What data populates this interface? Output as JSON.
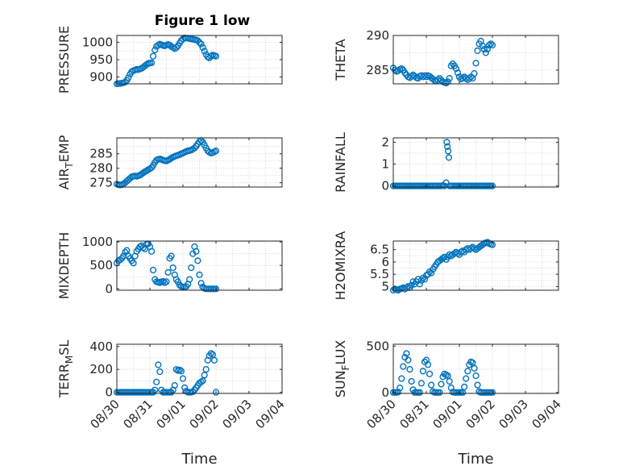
{
  "figure": {
    "title": "Figure 1 low",
    "background": "#ffffff",
    "marker_color": "#0072bd",
    "axis_color": "#262626",
    "grid_color": "#d9d9d9"
  },
  "chart_data": [
    {
      "type": "scatter",
      "title": "Figure 1 low",
      "xlabel": "",
      "ylabel": "PRESSURE",
      "ylabel_base": "",
      "ylabel_sub": "",
      "ylabel_tail": "",
      "xlim": [
        0,
        5
      ],
      "ylim": [
        880,
        1020
      ],
      "yticks": [
        900,
        950,
        1000
      ],
      "ytick_labels": [
        "900",
        "950",
        "1000"
      ],
      "xticks": [],
      "xtick_labels": [],
      "x": [
        0,
        0.05,
        0.1,
        0.15,
        0.2,
        0.25,
        0.3,
        0.35,
        0.4,
        0.45,
        0.5,
        0.55,
        0.6,
        0.65,
        0.7,
        0.75,
        0.8,
        0.85,
        0.9,
        0.95,
        1.0,
        1.05,
        1.1,
        1.15,
        1.2,
        1.25,
        1.3,
        1.35,
        1.4,
        1.45,
        1.5,
        1.55,
        1.6,
        1.65,
        1.7,
        1.75,
        1.8,
        1.85,
        1.9,
        1.95,
        2.0,
        2.05,
        2.1,
        2.15,
        2.2,
        2.25,
        2.3,
        2.35,
        2.4,
        2.45,
        2.5,
        2.55,
        2.6,
        2.65,
        2.7,
        2.75,
        2.8,
        2.85,
        2.9,
        2.95,
        3.0
      ],
      "y": [
        880,
        881,
        881,
        882,
        883,
        885,
        890,
        898,
        908,
        915,
        918,
        920,
        922,
        921,
        923,
        925,
        928,
        932,
        936,
        939,
        940,
        941,
        960,
        978,
        988,
        992,
        995,
        993,
        991,
        990,
        992,
        994,
        992,
        988,
        985,
        982,
        985,
        990,
        998,
        1005,
        1010,
        1013,
        1012,
        1012,
        1011,
        1010,
        1009,
        1008,
        1007,
        1005,
        1000,
        995,
        985,
        975,
        965,
        958,
        955,
        960,
        963,
        962,
        960
      ]
    },
    {
      "type": "scatter",
      "title": "",
      "xlabel": "",
      "ylabel": "THETA",
      "ylabel_base": "",
      "ylabel_sub": "",
      "ylabel_tail": "",
      "xlim": [
        0,
        5
      ],
      "ylim": [
        283,
        290
      ],
      "yticks": [
        285,
        290
      ],
      "ytick_labels": [
        "285",
        "290"
      ],
      "xticks": [],
      "xtick_labels": [],
      "x": [
        0,
        0.05,
        0.1,
        0.15,
        0.2,
        0.25,
        0.3,
        0.35,
        0.4,
        0.45,
        0.5,
        0.55,
        0.6,
        0.65,
        0.7,
        0.75,
        0.8,
        0.85,
        0.9,
        0.95,
        1.0,
        1.05,
        1.1,
        1.15,
        1.2,
        1.25,
        1.3,
        1.35,
        1.4,
        1.45,
        1.5,
        1.55,
        1.6,
        1.65,
        1.7,
        1.75,
        1.8,
        1.85,
        1.9,
        1.95,
        2.0,
        2.05,
        2.1,
        2.15,
        2.2,
        2.25,
        2.3,
        2.35,
        2.4,
        2.45,
        2.5,
        2.55,
        2.6,
        2.65,
        2.7,
        2.75,
        2.8,
        2.85,
        2.9,
        2.95,
        3.0
      ],
      "y": [
        285.3,
        285.0,
        284.8,
        284.9,
        285.1,
        285.2,
        285.0,
        284.6,
        284.3,
        284.0,
        283.9,
        284.1,
        284.3,
        284.1,
        283.9,
        283.8,
        284.1,
        284.2,
        284.0,
        284.2,
        284.0,
        284.2,
        284.1,
        283.9,
        283.7,
        283.5,
        283.4,
        283.6,
        283.8,
        283.5,
        283.3,
        283.2,
        283.1,
        283.3,
        283.8,
        285.6,
        285.9,
        285.6,
        285.2,
        284.6,
        284.0,
        283.7,
        283.8,
        284.0,
        283.8,
        283.6,
        283.8,
        284.0,
        283.8,
        284.5,
        286.0,
        287.8,
        288.8,
        289.2,
        288.5,
        288.0,
        287.5,
        288.0,
        288.6,
        288.8,
        288.6
      ]
    },
    {
      "type": "scatter",
      "title": "",
      "xlabel": "",
      "ylabel": "",
      "ylabel_base": "AIR",
      "ylabel_sub": "T",
      "ylabel_tail": "EMP",
      "xlim": [
        0,
        5
      ],
      "ylim": [
        273.5,
        290.5
      ],
      "yticks": [
        275,
        280,
        285
      ],
      "ytick_labels": [
        "275",
        "280",
        "285"
      ],
      "xticks": [],
      "xtick_labels": [],
      "x": [
        0,
        0.05,
        0.1,
        0.15,
        0.2,
        0.25,
        0.3,
        0.35,
        0.4,
        0.45,
        0.5,
        0.55,
        0.6,
        0.65,
        0.7,
        0.75,
        0.8,
        0.85,
        0.9,
        0.95,
        1.0,
        1.05,
        1.1,
        1.15,
        1.2,
        1.25,
        1.3,
        1.35,
        1.4,
        1.45,
        1.5,
        1.55,
        1.6,
        1.65,
        1.7,
        1.75,
        1.8,
        1.85,
        1.9,
        1.95,
        2.0,
        2.05,
        2.1,
        2.15,
        2.2,
        2.25,
        2.3,
        2.35,
        2.4,
        2.45,
        2.5,
        2.55,
        2.6,
        2.65,
        2.7,
        2.75,
        2.8,
        2.85,
        2.9,
        2.95,
        3.0
      ],
      "y": [
        274.5,
        274.3,
        274.2,
        274.3,
        274.6,
        275.0,
        275.5,
        276.0,
        276.5,
        277.0,
        277.2,
        277.3,
        277.2,
        277.4,
        277.6,
        278.0,
        278.4,
        278.8,
        279.1,
        279.5,
        279.8,
        280.2,
        281.0,
        282.0,
        282.8,
        283.1,
        283.2,
        283.0,
        282.8,
        282.6,
        282.5,
        282.8,
        283.1,
        283.5,
        283.8,
        284.1,
        284.3,
        284.5,
        284.7,
        285.0,
        285.2,
        285.5,
        285.8,
        286.0,
        286.1,
        286.3,
        286.6,
        287.0,
        287.6,
        288.4,
        289.2,
        289.6,
        289.0,
        288.0,
        287.0,
        286.0,
        285.5,
        285.2,
        285.4,
        285.7,
        286.0
      ]
    },
    {
      "type": "scatter",
      "title": "",
      "xlabel": "",
      "ylabel": "RAINFALL",
      "ylabel_base": "",
      "ylabel_sub": "",
      "ylabel_tail": "",
      "xlim": [
        0,
        5
      ],
      "ylim": [
        -0.05,
        2.2
      ],
      "yticks": [
        0,
        1,
        2
      ],
      "ytick_labels": [
        "0",
        "1",
        "2"
      ],
      "xticks": [],
      "xtick_labels": [],
      "x": [
        0,
        0.05,
        0.1,
        0.15,
        0.2,
        0.25,
        0.3,
        0.35,
        0.4,
        0.45,
        0.5,
        0.55,
        0.6,
        0.65,
        0.7,
        0.75,
        0.8,
        0.85,
        0.9,
        0.95,
        1.0,
        1.05,
        1.1,
        1.15,
        1.2,
        1.25,
        1.3,
        1.35,
        1.4,
        1.45,
        1.5,
        1.55,
        1.6,
        1.62,
        1.64,
        1.66,
        1.68,
        1.7,
        1.75,
        1.8,
        1.85,
        1.9,
        1.95,
        2.0,
        2.05,
        2.1,
        2.15,
        2.2,
        2.25,
        2.3,
        2.35,
        2.4,
        2.45,
        2.5,
        2.55,
        2.6,
        2.65,
        2.7,
        2.75,
        2.8,
        2.85,
        2.9,
        2.95,
        3.0
      ],
      "y": [
        0,
        0,
        0,
        0,
        0,
        0,
        0,
        0,
        0,
        0,
        0,
        0,
        0,
        0,
        0,
        0,
        0,
        0,
        0,
        0,
        0,
        0,
        0,
        0,
        0,
        0,
        0,
        0,
        0,
        0,
        0.02,
        0,
        0.15,
        2.0,
        1.8,
        1.6,
        1.3,
        0,
        0,
        0,
        0,
        0,
        0,
        0,
        0,
        0,
        0,
        0,
        0,
        0,
        0,
        0,
        0,
        0,
        0,
        0,
        0,
        0,
        0,
        0,
        0,
        0,
        0,
        0
      ]
    },
    {
      "type": "scatter",
      "title": "",
      "xlabel": "",
      "ylabel": "MIXDEPTH",
      "ylabel_base": "",
      "ylabel_sub": "",
      "ylabel_tail": "",
      "xlim": [
        0,
        5
      ],
      "ylim": [
        -30,
        1020
      ],
      "yticks": [
        0,
        500,
        1000
      ],
      "ytick_labels": [
        "0",
        "500",
        "1000"
      ],
      "xticks": [],
      "xtick_labels": [],
      "x": [
        0,
        0.05,
        0.1,
        0.15,
        0.2,
        0.25,
        0.3,
        0.35,
        0.4,
        0.45,
        0.5,
        0.55,
        0.6,
        0.65,
        0.7,
        0.75,
        0.8,
        0.85,
        0.9,
        0.95,
        1.0,
        1.05,
        1.1,
        1.15,
        1.2,
        1.25,
        1.3,
        1.35,
        1.4,
        1.45,
        1.5,
        1.55,
        1.6,
        1.65,
        1.7,
        1.75,
        1.8,
        1.85,
        1.9,
        1.95,
        2.0,
        2.05,
        2.1,
        2.15,
        2.2,
        2.25,
        2.3,
        2.35,
        2.4,
        2.45,
        2.5,
        2.55,
        2.6,
        2.65,
        2.7,
        2.75,
        2.8,
        2.85,
        2.9,
        2.95,
        3.0
      ],
      "y": [
        550,
        600,
        620,
        650,
        700,
        780,
        820,
        700,
        650,
        600,
        550,
        700,
        800,
        850,
        900,
        920,
        880,
        850,
        950,
        960,
        900,
        800,
        400,
        200,
        150,
        140,
        130,
        150,
        160,
        130,
        150,
        350,
        650,
        700,
        450,
        300,
        200,
        150,
        80,
        50,
        40,
        30,
        50,
        100,
        200,
        450,
        750,
        900,
        800,
        600,
        300,
        120,
        40,
        10,
        0,
        0,
        0,
        0,
        0,
        0,
        0
      ]
    },
    {
      "type": "scatter",
      "title": "",
      "xlabel": "",
      "ylabel": "H2OMIXRA",
      "ylabel_base": "",
      "ylabel_sub": "",
      "ylabel_tail": "",
      "xlim": [
        0,
        5
      ],
      "ylim": [
        4.85,
        6.85
      ],
      "yticks": [
        5,
        5.5,
        6,
        6.5
      ],
      "ytick_labels": [
        "5",
        "5.5",
        "6",
        "6.5"
      ],
      "xticks": [],
      "xtick_labels": [],
      "x": [
        0,
        0.05,
        0.1,
        0.15,
        0.2,
        0.25,
        0.3,
        0.35,
        0.4,
        0.45,
        0.5,
        0.55,
        0.6,
        0.65,
        0.7,
        0.75,
        0.8,
        0.85,
        0.9,
        0.95,
        1.0,
        1.05,
        1.1,
        1.15,
        1.2,
        1.25,
        1.3,
        1.35,
        1.4,
        1.45,
        1.5,
        1.55,
        1.6,
        1.65,
        1.7,
        1.75,
        1.8,
        1.85,
        1.9,
        1.95,
        2.0,
        2.05,
        2.1,
        2.15,
        2.2,
        2.25,
        2.3,
        2.35,
        2.4,
        2.45,
        2.5,
        2.55,
        2.6,
        2.65,
        2.7,
        2.75,
        2.8,
        2.85,
        2.9,
        2.95,
        3.0
      ],
      "y": [
        4.85,
        4.9,
        4.87,
        4.85,
        4.9,
        4.92,
        4.95,
        4.9,
        4.95,
        5.0,
        4.95,
        5.05,
        5.2,
        5.1,
        5.2,
        5.3,
        5.1,
        5.25,
        5.35,
        5.3,
        5.45,
        5.5,
        5.6,
        5.55,
        5.7,
        5.8,
        5.9,
        6.0,
        6.05,
        6.1,
        6.15,
        6.2,
        6.1,
        6.2,
        6.3,
        6.25,
        6.3,
        6.35,
        6.4,
        6.35,
        6.3,
        6.4,
        6.45,
        6.4,
        6.5,
        6.55,
        6.5,
        6.55,
        6.6,
        6.55,
        6.5,
        6.55,
        6.6,
        6.65,
        6.7,
        6.75,
        6.78,
        6.8,
        6.75,
        6.72,
        6.7
      ]
    },
    {
      "type": "scatter",
      "title": "",
      "xlabel": "Time",
      "ylabel": "",
      "ylabel_base": "TERR",
      "ylabel_sub": "M",
      "ylabel_tail": "SL",
      "xlim": [
        0,
        5
      ],
      "ylim": [
        -10,
        420
      ],
      "yticks": [
        0,
        200,
        400
      ],
      "ytick_labels": [
        "0",
        "200",
        "400"
      ],
      "xticks": [
        0,
        1,
        2,
        3,
        4,
        5
      ],
      "xtick_labels": [
        "08/30",
        "08/31",
        "09/01",
        "09/02",
        "09/03",
        "09/04"
      ],
      "x": [
        0,
        0.05,
        0.1,
        0.15,
        0.2,
        0.25,
        0.3,
        0.35,
        0.4,
        0.45,
        0.5,
        0.55,
        0.6,
        0.65,
        0.7,
        0.75,
        0.8,
        0.85,
        0.9,
        0.95,
        1.0,
        1.05,
        1.1,
        1.15,
        1.2,
        1.25,
        1.3,
        1.35,
        1.4,
        1.45,
        1.5,
        1.55,
        1.6,
        1.65,
        1.7,
        1.75,
        1.8,
        1.85,
        1.9,
        1.95,
        2.0,
        2.05,
        2.1,
        2.15,
        2.2,
        2.25,
        2.3,
        2.35,
        2.4,
        2.45,
        2.5,
        2.55,
        2.6,
        2.65,
        2.7,
        2.75,
        2.8,
        2.85,
        2.9,
        2.95,
        3.0
      ],
      "y": [
        0,
        0,
        0,
        0,
        0,
        0,
        0,
        0,
        0,
        0,
        0,
        0,
        0,
        0,
        0,
        0,
        0,
        0,
        0,
        0,
        0,
        0,
        0,
        20,
        90,
        240,
        180,
        20,
        0,
        0,
        0,
        0,
        0,
        0,
        20,
        60,
        200,
        190,
        195,
        185,
        120,
        40,
        10,
        0,
        0,
        0,
        5,
        20,
        40,
        60,
        80,
        90,
        100,
        150,
        200,
        280,
        320,
        340,
        330,
        280,
        0
      ]
    },
    {
      "type": "scatter",
      "title": "",
      "xlabel": "Time",
      "ylabel": "",
      "ylabel_base": "SUN",
      "ylabel_sub": "F",
      "ylabel_tail": "LUX",
      "xlim": [
        0,
        5
      ],
      "ylim": [
        -10,
        520
      ],
      "yticks": [
        0,
        500
      ],
      "ytick_labels": [
        "0",
        "500"
      ],
      "xticks": [
        0,
        1,
        2,
        3,
        4,
        5
      ],
      "xtick_labels": [
        "08/30",
        "08/31",
        "09/01",
        "09/02",
        "09/03",
        "09/04"
      ],
      "x": [
        0,
        0.05,
        0.1,
        0.15,
        0.2,
        0.25,
        0.3,
        0.35,
        0.4,
        0.45,
        0.5,
        0.55,
        0.6,
        0.65,
        0.7,
        0.75,
        0.8,
        0.85,
        0.9,
        0.95,
        1.0,
        1.05,
        1.1,
        1.15,
        1.2,
        1.25,
        1.3,
        1.35,
        1.4,
        1.45,
        1.5,
        1.55,
        1.6,
        1.65,
        1.7,
        1.75,
        1.8,
        1.85,
        1.9,
        1.95,
        2.0,
        2.05,
        2.1,
        2.15,
        2.2,
        2.25,
        2.3,
        2.35,
        2.4,
        2.45,
        2.5,
        2.55,
        2.6,
        2.65,
        2.7,
        2.75,
        2.8,
        2.85,
        2.9,
        2.95,
        3.0
      ],
      "y": [
        0,
        0,
        0,
        5,
        50,
        150,
        280,
        380,
        420,
        350,
        250,
        120,
        30,
        0,
        0,
        0,
        0,
        100,
        230,
        330,
        350,
        300,
        200,
        80,
        10,
        0,
        0,
        0,
        0,
        90,
        170,
        200,
        190,
        180,
        120,
        50,
        5,
        0,
        0,
        0,
        0,
        0,
        0,
        60,
        150,
        230,
        300,
        330,
        320,
        260,
        180,
        80,
        10,
        0,
        0,
        0,
        0,
        0,
        0,
        0,
        0
      ]
    }
  ]
}
